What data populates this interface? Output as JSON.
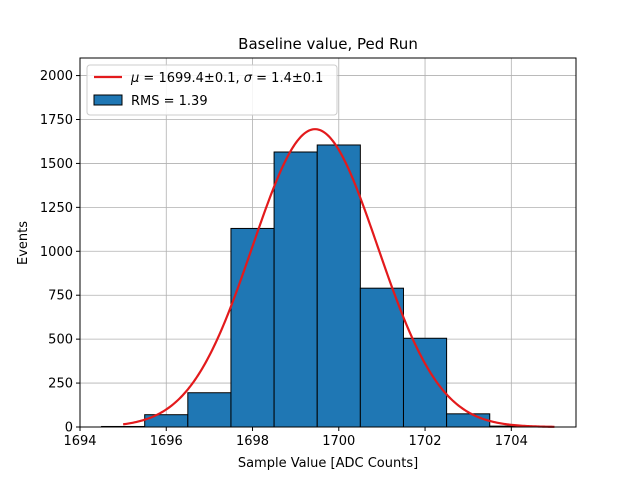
{
  "chart_data": {
    "type": "bar",
    "title": "Baseline value, Ped Run",
    "xlabel": "Sample Value [ADC Counts]",
    "ylabel": "Events",
    "xlim": [
      1694,
      1705.5
    ],
    "ylim": [
      0,
      2100
    ],
    "xticks": [
      1694,
      1696,
      1698,
      1700,
      1702,
      1704
    ],
    "yticks": [
      0,
      250,
      500,
      750,
      1000,
      1250,
      1500,
      1750,
      2000
    ],
    "grid": true,
    "legend_position": "top-left",
    "histogram": {
      "name": "RMS = 1.39",
      "color": "#1f77b4",
      "bins": [
        {
          "x0": 1694.5,
          "x1": 1695.5,
          "value": 3
        },
        {
          "x0": 1695.5,
          "x1": 1696.5,
          "value": 70
        },
        {
          "x0": 1696.5,
          "x1": 1697.5,
          "value": 195
        },
        {
          "x0": 1697.5,
          "x1": 1698.5,
          "value": 1130
        },
        {
          "x0": 1698.5,
          "x1": 1699.5,
          "value": 1565
        },
        {
          "x0": 1699.5,
          "x1": 1700.5,
          "value": 1605
        },
        {
          "x0": 1700.5,
          "x1": 1701.5,
          "value": 790
        },
        {
          "x0": 1701.5,
          "x1": 1702.5,
          "value": 505
        },
        {
          "x0": 1702.5,
          "x1": 1703.5,
          "value": 75
        },
        {
          "x0": 1703.5,
          "x1": 1704.5,
          "value": 5
        }
      ]
    },
    "fit": {
      "name_parts": [
        "μ",
        " = 1699.4±0.1, ",
        "σ",
        " = 1.4±0.1"
      ],
      "color": "#e31a1c",
      "mu": 1699.45,
      "sigma": 1.45,
      "amplitude": 1695,
      "x_range": [
        1695,
        1705
      ]
    }
  }
}
